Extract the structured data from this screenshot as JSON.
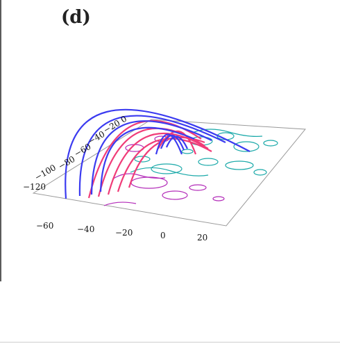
{
  "panel": {
    "label": "(d)"
  },
  "axes": {
    "x_ticks": [
      "−60",
      "−40",
      "−20",
      "0",
      "20"
    ],
    "y_ticks": [
      "−120",
      "−100",
      "−80",
      "−60",
      "−40",
      "−20",
      "0"
    ]
  },
  "colors": {
    "loops_blue": "#3b3bf0",
    "loops_red": "#f03c78",
    "contour_cyan": "#1aa9a9",
    "contour_magenta": "#b22ab8",
    "plane_border": "#9a9a9a"
  }
}
